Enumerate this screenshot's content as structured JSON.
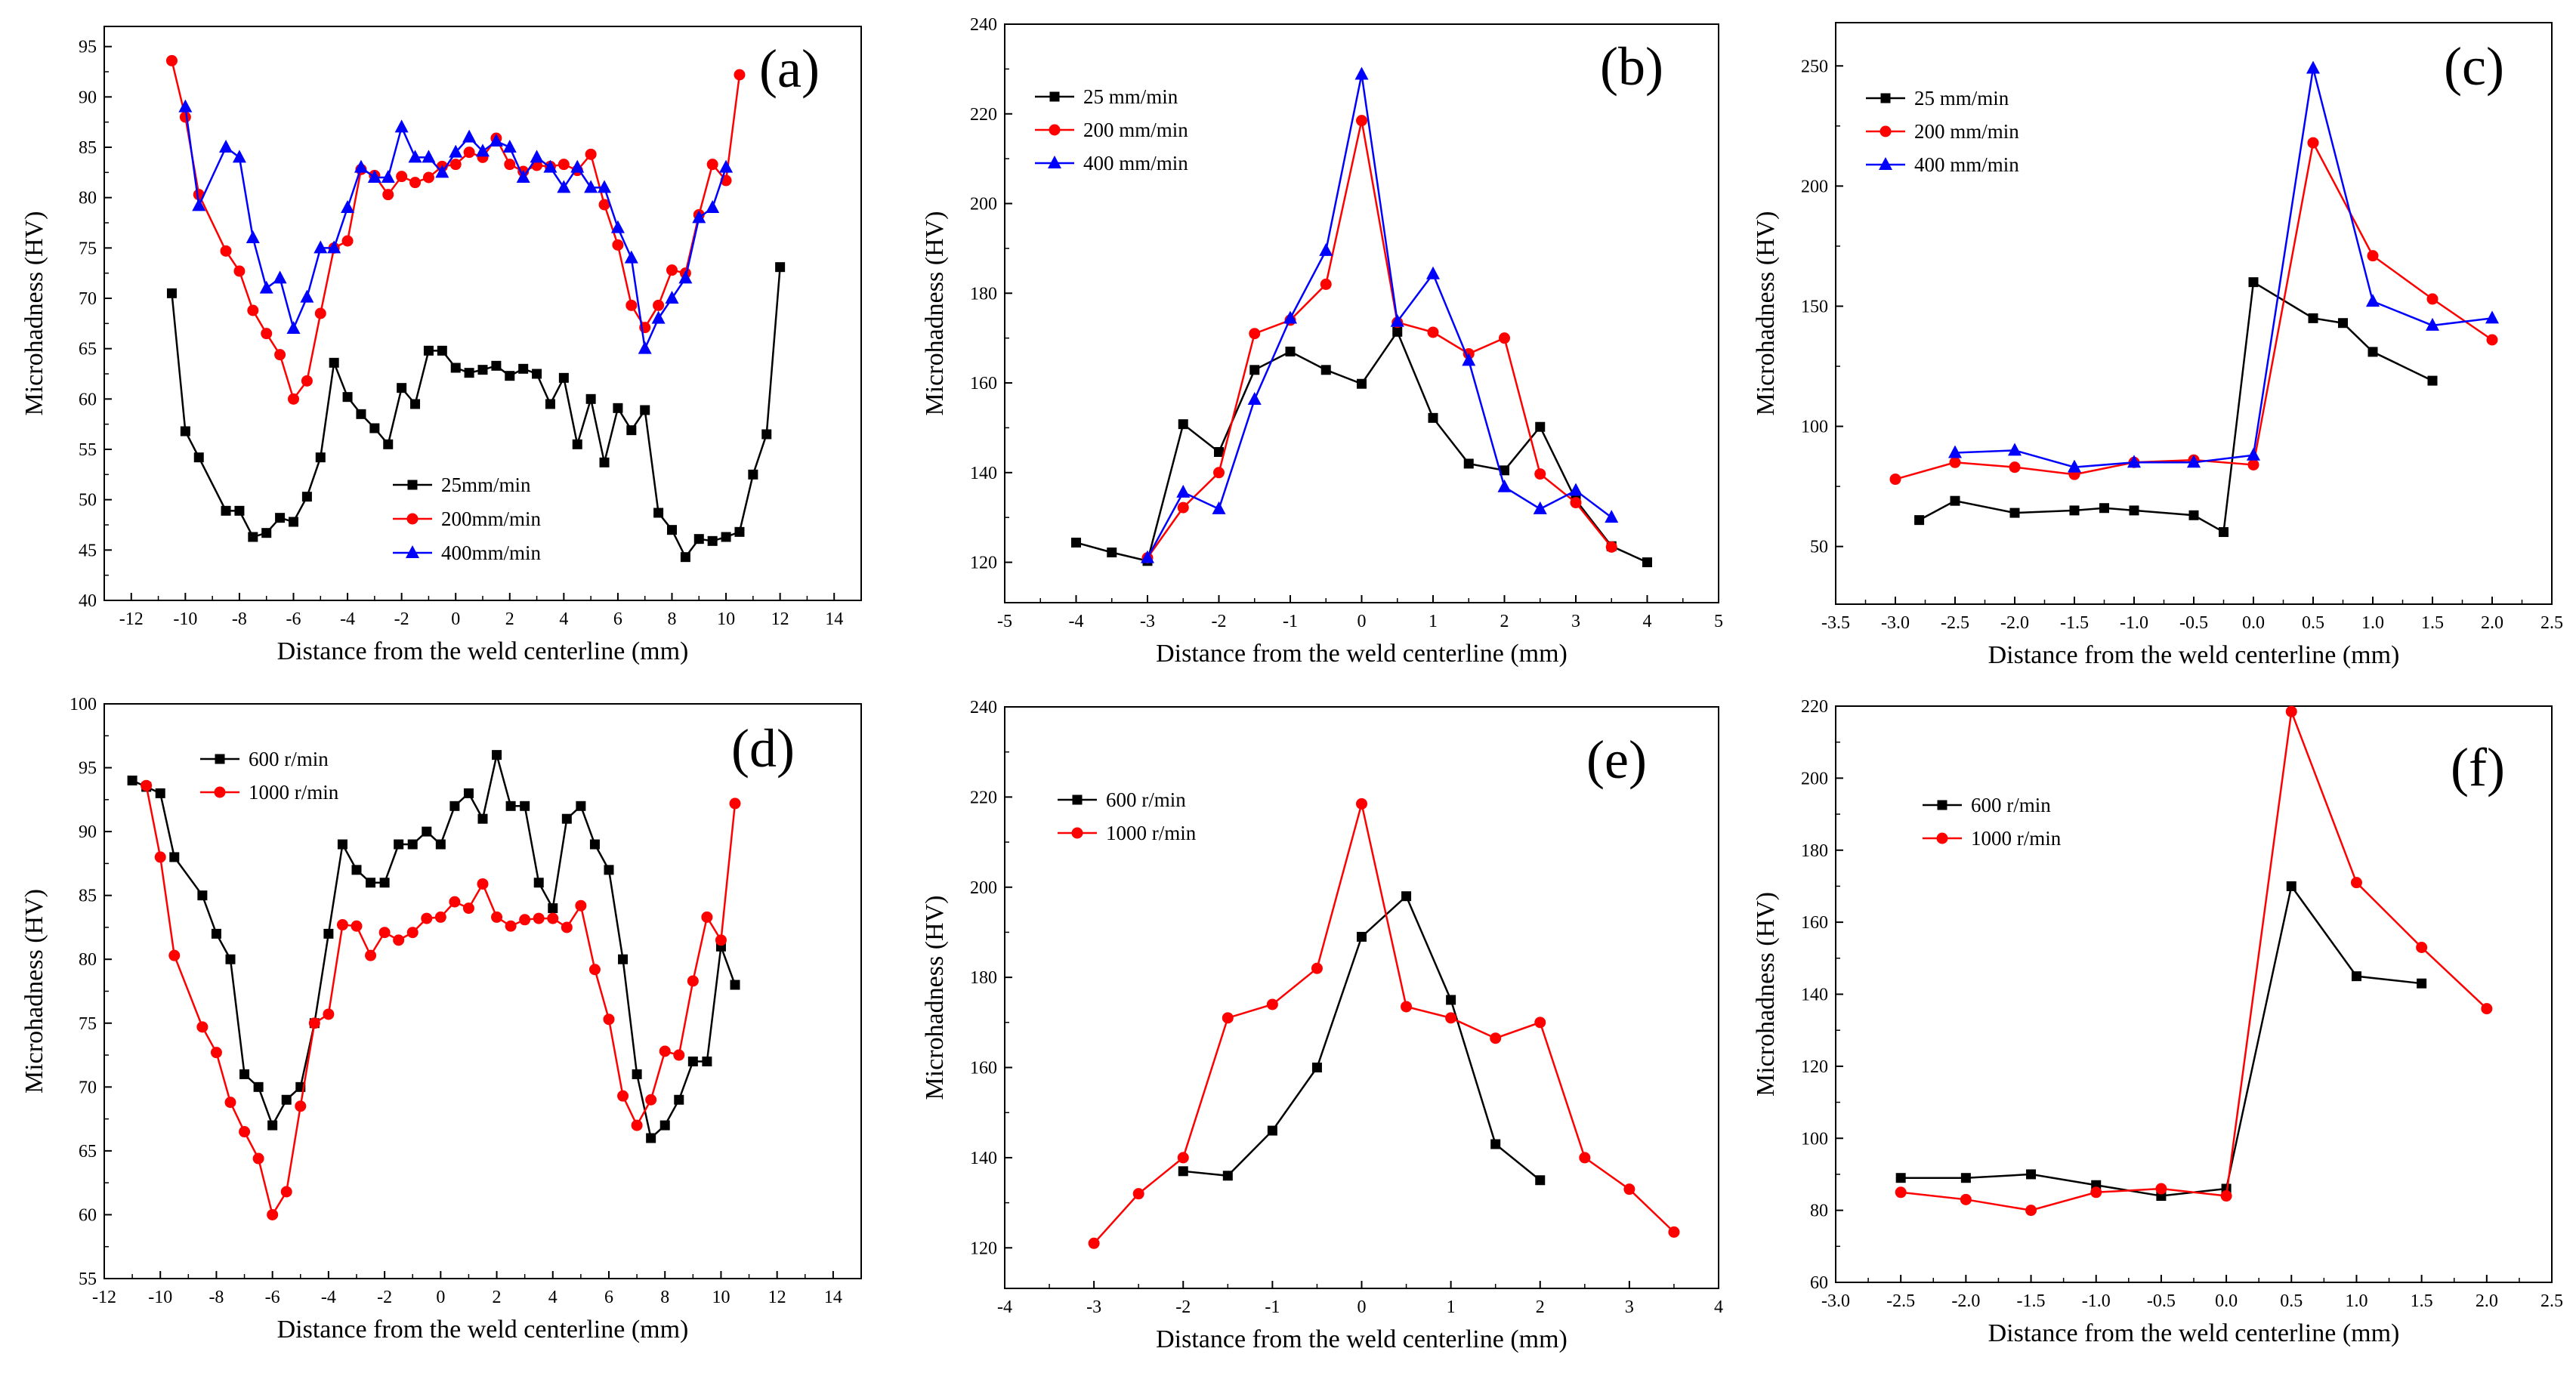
{
  "colors": {
    "black": "#000000",
    "red": "#ff0000",
    "blue": "#0000ff"
  },
  "chart_data": [
    {
      "id": "a",
      "tag": "(a)",
      "type": "line",
      "xlabel": "Distance from the weld centerline (mm)",
      "ylabel": "Microhadness (HV)",
      "xlim": [
        -13,
        15
      ],
      "ylim": [
        40,
        97
      ],
      "xticks": [
        -12,
        -10,
        -8,
        -6,
        -4,
        -2,
        0,
        2,
        4,
        6,
        8,
        10,
        12,
        14
      ],
      "yticks": [
        40,
        45,
        50,
        55,
        60,
        65,
        70,
        75,
        80,
        85,
        90,
        95
      ],
      "legend_position": "bottom-center",
      "series": [
        {
          "name": "25mm/min",
          "color": "#000000",
          "marker": "square",
          "x": [
            -10.5,
            -10,
            -9.5,
            -8.5,
            -8,
            -7.5,
            -7,
            -6.5,
            -6,
            -5.5,
            -5,
            -4.5,
            -4,
            -3.5,
            -3,
            -2.5,
            -2,
            -1.5,
            -1,
            -0.5,
            0,
            0.5,
            1,
            1.5,
            2,
            2.5,
            3,
            3.5,
            4,
            4.5,
            5,
            5.5,
            6,
            6.5,
            7,
            7.5,
            8,
            8.5,
            9,
            9.5,
            10,
            10.5,
            11,
            11.5,
            12
          ],
          "y": [
            70.5,
            56.8,
            54.2,
            48.9,
            48.9,
            46.3,
            46.7,
            48.2,
            47.8,
            50.3,
            54.2,
            63.6,
            60.2,
            58.5,
            57.1,
            55.5,
            61.1,
            59.5,
            64.8,
            64.8,
            63.1,
            62.6,
            62.9,
            63.3,
            62.3,
            63.0,
            62.5,
            59.5,
            62.1,
            55.5,
            60.0,
            53.7,
            59.1,
            56.9,
            58.9,
            48.7,
            47.0,
            44.3,
            46.1,
            45.9,
            46.3,
            46.8,
            52.5,
            56.5,
            73.1
          ]
        },
        {
          "name": "200mm/min",
          "color": "#ff0000",
          "marker": "circle",
          "x": [
            -10.5,
            -10,
            -9.5,
            -8.5,
            -8,
            -7.5,
            -7,
            -6.5,
            -6,
            -5.5,
            -5,
            -4.5,
            -4,
            -3.5,
            -3,
            -2.5,
            -2,
            -1.5,
            -1,
            -0.5,
            0,
            0.5,
            1,
            1.5,
            2,
            2.5,
            3,
            3.5,
            4,
            4.5,
            5,
            5.5,
            6,
            6.5,
            7,
            7.5,
            8,
            8.5,
            9,
            9.5,
            10,
            10.5
          ],
          "y": [
            93.6,
            88.0,
            80.3,
            74.7,
            72.7,
            68.8,
            66.5,
            64.4,
            60.0,
            61.8,
            68.5,
            75.0,
            75.7,
            82.8,
            82.2,
            80.3,
            82.1,
            81.5,
            82.0,
            83.1,
            83.3,
            84.5,
            84.0,
            85.9,
            83.3,
            82.6,
            83.2,
            83.1,
            83.3,
            82.7,
            84.3,
            79.3,
            75.3,
            69.3,
            67.1,
            69.3,
            72.8,
            72.5,
            78.3,
            83.3,
            81.7,
            92.2
          ]
        },
        {
          "name": "400mm/min",
          "color": "#0000ff",
          "marker": "triangle",
          "x": [
            -10,
            -9.5,
            -8.5,
            -8,
            -7.5,
            -7,
            -6.5,
            -6,
            -5.5,
            -5,
            -4.5,
            -4,
            -3.5,
            -3,
            -2.5,
            -2,
            -1.5,
            -1,
            -0.5,
            0,
            0.5,
            1,
            1.5,
            2,
            2.5,
            3,
            3.5,
            4,
            4.5,
            5,
            5.5,
            6,
            6.5,
            7,
            7.5,
            8,
            8.5,
            9,
            9.5,
            10
          ],
          "y": [
            89.0,
            79.2,
            85.0,
            84.0,
            76.0,
            71.0,
            72.0,
            67.0,
            70.1,
            75.0,
            75.0,
            79.0,
            83.0,
            82.0,
            82.0,
            87.0,
            84.0,
            84.0,
            82.5,
            84.5,
            86.0,
            84.6,
            85.6,
            85.0,
            82.0,
            84.0,
            83.0,
            81.0,
            83.0,
            81.0,
            81.0,
            77.0,
            74.0,
            65.0,
            68.0,
            70.0,
            72.0,
            78.0,
            79.0,
            83.0
          ]
        }
      ]
    },
    {
      "id": "b",
      "tag": "(b)",
      "type": "line",
      "xlabel": "Distance from the weld centerline (mm)",
      "ylabel": "Microhadness (HV)",
      "xlim": [
        -5,
        5
      ],
      "ylim": [
        111,
        240
      ],
      "xticks": [
        -5,
        -4,
        -3,
        -2,
        -1,
        0,
        1,
        2,
        3,
        4,
        5
      ],
      "yticks": [
        120,
        140,
        160,
        180,
        200,
        220,
        240
      ],
      "legend_position": "top-left",
      "series": [
        {
          "name": "25 mm/min",
          "color": "#000000",
          "marker": "square",
          "x": [
            -4,
            -3.5,
            -3,
            -2.5,
            -2,
            -1.5,
            -1,
            -0.5,
            0,
            0.5,
            1,
            1.5,
            2,
            2.5,
            3,
            3.5,
            4
          ],
          "y": [
            124.4,
            122.2,
            120.3,
            150.8,
            144.6,
            162.9,
            167.0,
            162.9,
            159.8,
            171.4,
            152.2,
            142.0,
            140.5,
            150.2,
            133.9,
            123.6,
            120.0
          ]
        },
        {
          "name": "200 mm/min",
          "color": "#ff0000",
          "marker": "circle",
          "x": [
            -3,
            -2.5,
            -2,
            -1.5,
            -1,
            -0.5,
            0,
            0.5,
            1,
            1.5,
            2,
            2.5,
            3,
            3.5
          ],
          "y": [
            121.0,
            132.2,
            140.0,
            171.0,
            174.0,
            182.0,
            218.5,
            173.5,
            171.3,
            166.5,
            170.0,
            139.7,
            133.3,
            123.4
          ]
        },
        {
          "name": "400 mm/min",
          "color": "#0000ff",
          "marker": "triangle",
          "x": [
            -3,
            -2.5,
            -2,
            -1.5,
            -1,
            -0.5,
            0,
            0.5,
            1,
            1.5,
            2,
            2.5,
            3,
            3.5
          ],
          "y": [
            121.0,
            135.6,
            131.9,
            156.3,
            174.4,
            189.5,
            228.8,
            173.7,
            184.3,
            165.0,
            136.8,
            131.9,
            136.0,
            130.0
          ]
        }
      ]
    },
    {
      "id": "c",
      "tag": "(c)",
      "type": "line",
      "xlabel": "Distance from the weld centerline (mm)",
      "ylabel": "Microhadness (HV)",
      "xlim": [
        -3.5,
        2.5
      ],
      "ylim": [
        26,
        268
      ],
      "xticks": [
        -3.5,
        -3.0,
        -2.5,
        -2.0,
        -1.5,
        -1.0,
        -0.5,
        0.0,
        0.5,
        1.0,
        1.5,
        2.0,
        2.5
      ],
      "yticks": [
        50,
        100,
        150,
        200,
        250
      ],
      "legend_position": "top-left",
      "series": [
        {
          "name": "25 mm/min",
          "color": "#000000",
          "marker": "square",
          "x": [
            -2.8,
            -2.5,
            -2.0,
            -1.5,
            -1.25,
            -1.0,
            -0.5,
            -0.25,
            0.0,
            0.5,
            0.75,
            1.0,
            1.5
          ],
          "y": [
            61,
            69,
            64,
            65,
            66,
            65,
            63,
            56,
            160,
            145,
            143,
            131,
            119
          ]
        },
        {
          "name": "200 mm/min",
          "color": "#ff0000",
          "marker": "circle",
          "x": [
            -3.0,
            -2.5,
            -2.0,
            -1.5,
            -1.0,
            -0.5,
            0.0,
            0.5,
            1.0,
            1.5,
            2.0
          ],
          "y": [
            78,
            85,
            83,
            80,
            85,
            86,
            84,
            218,
            171,
            153,
            136
          ]
        },
        {
          "name": "400 mm/min",
          "color": "#0000ff",
          "marker": "triangle",
          "x": [
            -2.5,
            -2.0,
            -1.5,
            -1.0,
            -0.5,
            0.0,
            0.5,
            1.0,
            1.5,
            2.0
          ],
          "y": [
            89,
            90,
            83,
            85,
            85,
            88,
            249,
            152,
            142,
            145
          ]
        }
      ]
    },
    {
      "id": "d",
      "tag": "(d)",
      "type": "line",
      "xlabel": "Distance from the weld centerline (mm)",
      "ylabel": "Microhadness (HV)",
      "xlim": [
        -12,
        15
      ],
      "ylim": [
        55,
        100
      ],
      "xticks": [
        -12,
        -10,
        -8,
        -6,
        -4,
        -2,
        0,
        2,
        4,
        6,
        8,
        10,
        12,
        14
      ],
      "yticks": [
        55,
        60,
        65,
        70,
        75,
        80,
        85,
        90,
        95,
        100
      ],
      "legend_position": "top-left",
      "series": [
        {
          "name": "600 r/min",
          "color": "#000000",
          "marker": "square",
          "x": [
            -11,
            -10.5,
            -10,
            -9.5,
            -8.5,
            -8,
            -7.5,
            -7,
            -6.5,
            -6,
            -5.5,
            -5,
            -4.5,
            -4,
            -3.5,
            -3,
            -2.5,
            -2,
            -1.5,
            -1,
            -0.5,
            0,
            0.5,
            1,
            1.5,
            2,
            2.5,
            3,
            3.5,
            4,
            4.5,
            5,
            5.5,
            6,
            6.5,
            7,
            7.5,
            8,
            8.5,
            9,
            9.5,
            10,
            10.5
          ],
          "y": [
            94,
            93.5,
            93,
            88,
            85,
            82,
            80,
            71,
            70,
            67,
            69,
            70,
            75,
            82,
            89,
            87,
            86,
            86,
            89,
            89,
            90,
            89,
            92,
            93,
            91,
            96,
            92,
            92,
            86,
            84,
            91,
            92,
            89,
            87,
            80,
            71,
            66,
            67,
            69,
            72,
            72,
            81,
            78
          ]
        },
        {
          "name": "1000 r/min",
          "color": "#ff0000",
          "marker": "circle",
          "x": [
            -10.5,
            -10,
            -9.5,
            -8.5,
            -8,
            -7.5,
            -7,
            -6.5,
            -6,
            -5.5,
            -5,
            -4.5,
            -4,
            -3.5,
            -3,
            -2.5,
            -2,
            -1.5,
            -1,
            -0.5,
            0,
            0.5,
            1,
            1.5,
            2,
            2.5,
            3,
            3.5,
            4,
            4.5,
            5,
            5.5,
            6,
            6.5,
            7,
            7.5,
            8,
            8.5,
            9,
            9.5,
            10,
            10.5
          ],
          "y": [
            93.6,
            88.0,
            80.3,
            74.7,
            72.7,
            68.8,
            66.5,
            64.4,
            60.0,
            61.8,
            68.5,
            75.0,
            75.7,
            82.7,
            82.6,
            80.3,
            82.1,
            81.5,
            82.1,
            83.2,
            83.3,
            84.5,
            84.0,
            85.9,
            83.3,
            82.6,
            83.1,
            83.2,
            83.2,
            82.5,
            84.2,
            79.2,
            75.3,
            69.3,
            67.0,
            69.0,
            72.8,
            72.5,
            78.3,
            83.3,
            81.5,
            92.2
          ]
        }
      ]
    },
    {
      "id": "e",
      "tag": "(e)",
      "type": "line",
      "xlabel": "Distance from the weld centerline (mm)",
      "ylabel": "Microhadness (HV)",
      "xlim": [
        -4,
        4
      ],
      "ylim": [
        111,
        240
      ],
      "xticks": [
        -4,
        -3,
        -2,
        -1,
        0,
        1,
        2,
        3,
        4
      ],
      "yticks": [
        120,
        140,
        160,
        180,
        200,
        220,
        240
      ],
      "legend_position": "top-left",
      "series": [
        {
          "name": "600 r/min",
          "color": "#000000",
          "marker": "square",
          "x": [
            -2,
            -1.5,
            -1,
            -0.5,
            0,
            0.5,
            1,
            1.5,
            2
          ],
          "y": [
            137,
            136,
            146,
            160,
            189,
            198,
            175,
            143,
            135
          ]
        },
        {
          "name": "1000 r/min",
          "color": "#ff0000",
          "marker": "circle",
          "x": [
            -3,
            -2.5,
            -2,
            -1.5,
            -1,
            -0.5,
            0,
            0.5,
            1,
            1.5,
            2,
            2.5,
            3,
            3.5
          ],
          "y": [
            121,
            132,
            140,
            171,
            174,
            182,
            218.5,
            173.5,
            171,
            166.5,
            170,
            140,
            133,
            123.5
          ]
        }
      ]
    },
    {
      "id": "f",
      "tag": "(f)",
      "type": "line",
      "xlabel": "Distance from the weld centerline (mm)",
      "ylabel": "Microhadness (HV)",
      "xlim": [
        -3.0,
        2.5
      ],
      "ylim": [
        60,
        220
      ],
      "xticks": [
        -3.0,
        -2.5,
        -2.0,
        -1.5,
        -1.0,
        -0.5,
        0.0,
        0.5,
        1.0,
        1.5,
        2.0,
        2.5
      ],
      "yticks": [
        60,
        80,
        100,
        120,
        140,
        160,
        180,
        200,
        220
      ],
      "legend_position": "top-left",
      "series": [
        {
          "name": "600 r/min",
          "color": "#000000",
          "marker": "square",
          "x": [
            -2.5,
            -2.0,
            -1.5,
            -1.0,
            -0.5,
            0.0,
            0.5,
            1.0,
            1.5
          ],
          "y": [
            89,
            89,
            90,
            87,
            84,
            86,
            170,
            145,
            143
          ]
        },
        {
          "name": "1000 r/min",
          "color": "#ff0000",
          "marker": "circle",
          "x": [
            -2.5,
            -2.0,
            -1.5,
            -1.0,
            -0.5,
            0.0,
            0.5,
            1.0,
            1.5,
            2.0
          ],
          "y": [
            85,
            83,
            80,
            85,
            86,
            84,
            218.5,
            171,
            153,
            136
          ]
        }
      ]
    }
  ]
}
